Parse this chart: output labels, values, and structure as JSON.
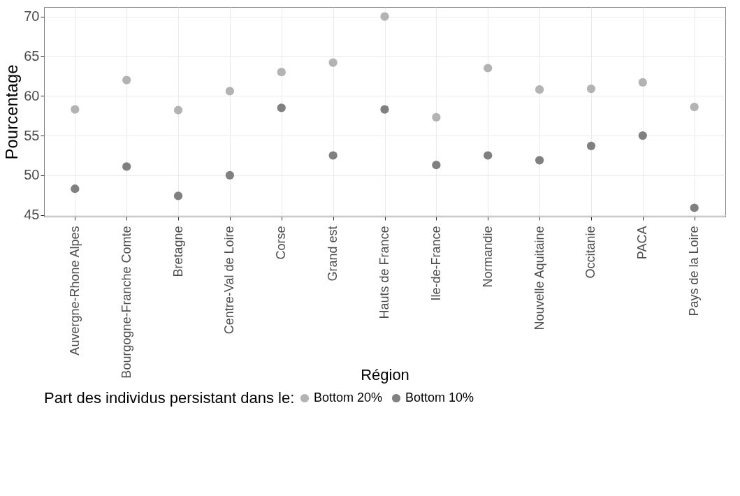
{
  "chart_data": {
    "type": "scatter",
    "xlabel": "Région",
    "ylabel": "Pourcentage",
    "legend_title": "Part des individus persistant dans le:",
    "categories": [
      "Auvergne-Rhone Alpes",
      "Bourgogne-Franche Comte",
      "Bretagne",
      "Centre-Val de Loire",
      "Corse",
      "Grand est",
      "Hauts de France",
      "Ile-de-France",
      "Normandie",
      "Nouvelle Aquitaine",
      "Occitanie",
      "PACA",
      "Pays de la Loire"
    ],
    "series": [
      {
        "name": "Bottom 20%",
        "color": "#b3b3b3",
        "values": [
          58.3,
          62.0,
          58.2,
          60.6,
          63.0,
          64.2,
          70.0,
          57.3,
          63.5,
          60.8,
          60.9,
          61.7,
          58.6
        ]
      },
      {
        "name": "Bottom 10%",
        "color": "#808080",
        "values": [
          48.3,
          51.1,
          47.4,
          50.0,
          58.5,
          52.5,
          58.3,
          51.3,
          52.5,
          51.9,
          53.7,
          55.0,
          45.9
        ]
      }
    ],
    "ylim": [
      44.8,
      71.2
    ],
    "yticks": [
      45,
      50,
      55,
      60,
      65,
      70
    ],
    "grid": true,
    "legend": "bottom",
    "marker": "circle"
  }
}
